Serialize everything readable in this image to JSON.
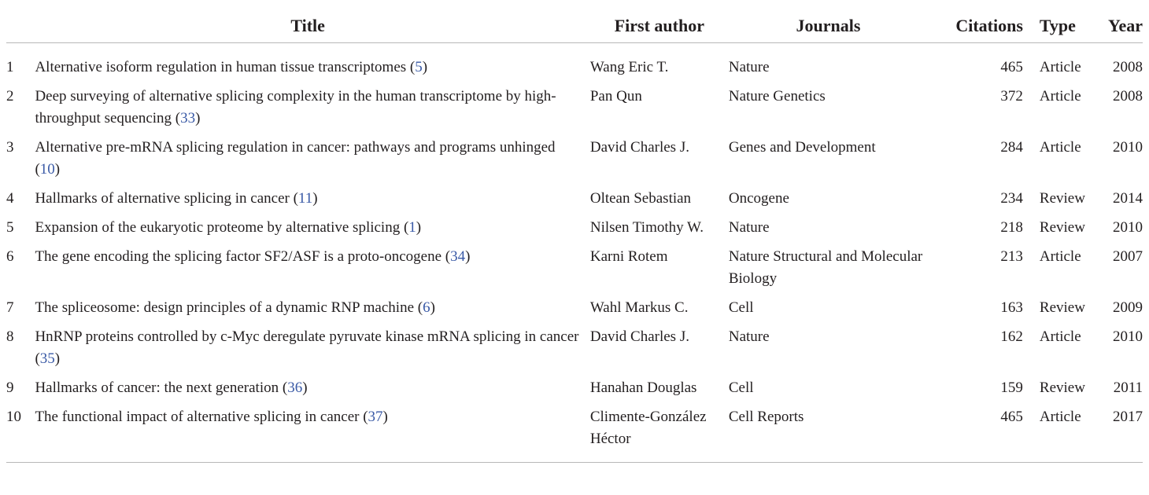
{
  "headers": {
    "title": "Title",
    "author": "First author",
    "journal": "Journals",
    "citations": "Citations",
    "type": "Type",
    "year": "Year"
  },
  "rows": [
    {
      "num": "1",
      "title": "Alternative isoform regulation in human tissue transcriptomes",
      "ref": "5",
      "author": "Wang Eric T.",
      "journal": "Nature",
      "citations": "465",
      "type": "Article",
      "year": "2008"
    },
    {
      "num": "2",
      "title": "Deep surveying of alternative splicing complexity in the human transcriptome by high-throughput sequencing",
      "ref": "33",
      "author": "Pan Qun",
      "journal": "Nature Genetics",
      "citations": "372",
      "type": "Article",
      "year": "2008"
    },
    {
      "num": "3",
      "title": "Alternative pre-mRNA splicing regulation in cancer: pathways and programs unhinged",
      "ref": "10",
      "author": "David Charles J.",
      "journal": "Genes and Development",
      "citations": "284",
      "type": "Article",
      "year": "2010"
    },
    {
      "num": "4",
      "title": "Hallmarks of alternative splicing in cancer",
      "ref": "11",
      "author": "Oltean Sebastian",
      "journal": "Oncogene",
      "citations": "234",
      "type": "Review",
      "year": "2014"
    },
    {
      "num": "5",
      "title": "Expansion of the eukaryotic proteome by alternative splicing",
      "ref": "1",
      "author": "Nilsen Timothy W.",
      "journal": "Nature",
      "citations": "218",
      "type": "Review",
      "year": "2010"
    },
    {
      "num": "6",
      "title": "The gene encoding the splicing factor SF2/ASF is a proto-oncogene",
      "ref": "34",
      "author": "Karni Rotem",
      "journal": "Nature Structural and Molecular Biology",
      "citations": "213",
      "type": "Article",
      "year": "2007"
    },
    {
      "num": "7",
      "title": "The spliceosome: design principles of a dynamic RNP machine",
      "ref": "6",
      "author": "Wahl Markus C.",
      "journal": "Cell",
      "citations": "163",
      "type": "Review",
      "year": "2009"
    },
    {
      "num": "8",
      "title": "HnRNP proteins controlled by c-Myc deregulate pyruvate kinase mRNA splicing in cancer",
      "ref": "35",
      "author": "David Charles J.",
      "journal": "Nature",
      "citations": "162",
      "type": "Article",
      "year": "2010"
    },
    {
      "num": "9",
      "title": "Hallmarks of cancer: the next generation",
      "ref": "36",
      "author": "Hanahan Douglas",
      "journal": "Cell",
      "citations": "159",
      "type": "Review",
      "year": "2011"
    },
    {
      "num": "10",
      "title": "The functional impact of alternative splicing in cancer",
      "ref": "37",
      "author": "Climente-González Héctor",
      "journal": "Cell Reports",
      "citations": "465",
      "type": "Article",
      "year": "2017"
    }
  ]
}
